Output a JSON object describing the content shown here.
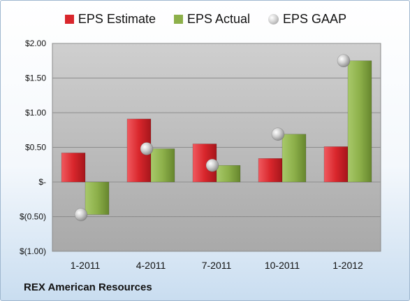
{
  "chart_data": {
    "type": "bar",
    "categories": [
      "1-2011",
      "4-2011",
      "7-2011",
      "10-2011",
      "1-2012"
    ],
    "series": [
      {
        "name": "EPS Estimate",
        "kind": "bar",
        "color": "#d9262c",
        "values": [
          0.42,
          0.91,
          0.55,
          0.34,
          0.51
        ]
      },
      {
        "name": "EPS Actual",
        "kind": "bar",
        "color": "#8db04a",
        "values": [
          -0.47,
          0.48,
          0.24,
          0.69,
          1.75
        ]
      },
      {
        "name": "EPS GAAP",
        "kind": "marker",
        "color": "#c8c8c8",
        "values": [
          -0.47,
          0.48,
          0.24,
          0.69,
          1.75
        ]
      }
    ],
    "ylim": [
      -1.0,
      2.0
    ],
    "yticks": [
      {
        "value": 2.0,
        "label": "$2.00"
      },
      {
        "value": 1.5,
        "label": "$1.50"
      },
      {
        "value": 1.0,
        "label": "$1.00"
      },
      {
        "value": 0.5,
        "label": "$0.50"
      },
      {
        "value": 0.0,
        "label": "$-"
      },
      {
        "value": -0.5,
        "label": "$(0.50)"
      },
      {
        "value": -1.0,
        "label": "$(1.00)"
      }
    ],
    "grid": true,
    "legend_position": "top",
    "xlabel": "",
    "ylabel": ""
  },
  "footer": {
    "company": "REX American Resources"
  }
}
